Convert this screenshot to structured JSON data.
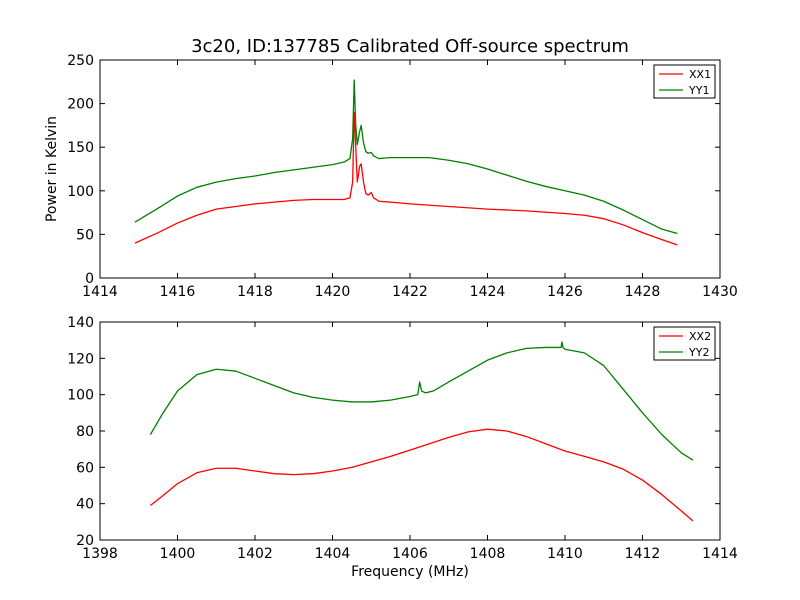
{
  "figure": {
    "title": "3c20, ID:137785 Calibrated Off-source spectrum"
  },
  "chart_data": [
    {
      "type": "line",
      "title": "3c20, ID:137785 Calibrated Off-source spectrum",
      "xlabel": "",
      "ylabel": "Power in Kelvin",
      "xlim": [
        1414,
        1430
      ],
      "ylim": [
        0,
        250
      ],
      "xticks": [
        1414,
        1416,
        1418,
        1420,
        1422,
        1424,
        1426,
        1428,
        1430
      ],
      "yticks": [
        0,
        50,
        100,
        150,
        200,
        250
      ],
      "legend": "top-right",
      "grid": false,
      "series": [
        {
          "name": "XX1",
          "color": "#ff0000",
          "x": [
            1414.9,
            1415.5,
            1416.0,
            1416.5,
            1417.0,
            1417.5,
            1418.0,
            1418.5,
            1419.0,
            1419.5,
            1420.0,
            1420.3,
            1420.45,
            1420.52,
            1420.56,
            1420.6,
            1420.64,
            1420.7,
            1420.74,
            1420.8,
            1420.86,
            1420.92,
            1421.0,
            1421.06,
            1421.2,
            1421.5,
            1422.0,
            1423.0,
            1424.0,
            1425.0,
            1426.0,
            1426.5,
            1427.0,
            1427.5,
            1428.0,
            1428.5,
            1428.9
          ],
          "values": [
            40,
            52,
            63,
            72,
            79,
            82,
            85,
            87,
            89,
            90,
            90,
            90,
            92,
            110,
            190,
            150,
            110,
            128,
            131,
            110,
            97,
            95,
            98,
            92,
            88,
            87,
            85,
            82,
            79,
            77,
            74,
            72,
            68,
            61,
            52,
            44,
            38
          ]
        },
        {
          "name": "YY1",
          "color": "#008000",
          "x": [
            1414.9,
            1415.5,
            1416.0,
            1416.5,
            1417.0,
            1417.5,
            1418.0,
            1418.5,
            1419.0,
            1419.5,
            1420.0,
            1420.3,
            1420.45,
            1420.52,
            1420.56,
            1420.6,
            1420.64,
            1420.7,
            1420.74,
            1420.8,
            1420.86,
            1420.92,
            1421.0,
            1421.06,
            1421.2,
            1421.5,
            1422.0,
            1422.5,
            1423.0,
            1423.5,
            1424.0,
            1424.5,
            1425.0,
            1425.5,
            1426.0,
            1426.5,
            1427.0,
            1427.5,
            1428.0,
            1428.5,
            1428.9
          ],
          "values": [
            64,
            80,
            94,
            104,
            110,
            114,
            117,
            121,
            124,
            127,
            130,
            133,
            137,
            160,
            227,
            175,
            153,
            168,
            175,
            155,
            145,
            143,
            144,
            140,
            137,
            138,
            138,
            138,
            135,
            131,
            125,
            118,
            111,
            105,
            100,
            95,
            88,
            78,
            67,
            56,
            51
          ]
        }
      ]
    },
    {
      "type": "line",
      "title": "",
      "xlabel": "Frequency (MHz)",
      "ylabel": "",
      "xlim": [
        1398,
        1414
      ],
      "ylim": [
        20,
        140
      ],
      "xticks": [
        1398,
        1400,
        1402,
        1404,
        1406,
        1408,
        1410,
        1412,
        1414
      ],
      "yticks": [
        20,
        40,
        60,
        80,
        100,
        120,
        140
      ],
      "legend": "top-right",
      "grid": false,
      "series": [
        {
          "name": "XX2",
          "color": "#ff0000",
          "x": [
            1399.3,
            1399.6,
            1400.0,
            1400.5,
            1401.0,
            1401.5,
            1402.0,
            1402.5,
            1403.0,
            1403.5,
            1404.0,
            1404.5,
            1405.0,
            1405.5,
            1406.0,
            1406.5,
            1407.0,
            1407.5,
            1408.0,
            1408.5,
            1409.0,
            1409.5,
            1410.0,
            1410.5,
            1411.0,
            1411.5,
            1412.0,
            1412.5,
            1413.0,
            1413.3
          ],
          "values": [
            39,
            44,
            51,
            57,
            59.5,
            59.5,
            58,
            56.5,
            56,
            56.5,
            58,
            60,
            63,
            66,
            69.5,
            73,
            76.5,
            79.5,
            81,
            80,
            77,
            73,
            69,
            66,
            63,
            59,
            53,
            45,
            36,
            30.5
          ]
        },
        {
          "name": "YY2",
          "color": "#008000",
          "x": [
            1399.3,
            1399.6,
            1400.0,
            1400.5,
            1401.0,
            1401.5,
            1402.0,
            1402.5,
            1403.0,
            1403.5,
            1404.0,
            1404.5,
            1405.0,
            1405.5,
            1406.0,
            1406.2,
            1406.25,
            1406.3,
            1406.4,
            1406.6,
            1407.0,
            1407.5,
            1408.0,
            1408.5,
            1409.0,
            1409.5,
            1409.9,
            1409.92,
            1409.95,
            1410.0,
            1410.5,
            1411.0,
            1411.5,
            1412.0,
            1412.5,
            1413.0,
            1413.3
          ],
          "values": [
            78,
            89,
            102,
            111,
            114,
            113,
            109,
            105,
            101,
            98.5,
            97,
            96,
            96,
            97,
            99,
            100,
            107,
            102,
            101,
            102,
            107,
            113,
            119,
            123,
            125.5,
            126,
            126,
            129,
            126,
            125,
            123,
            116,
            103,
            90,
            78,
            68,
            64
          ]
        }
      ]
    }
  ]
}
